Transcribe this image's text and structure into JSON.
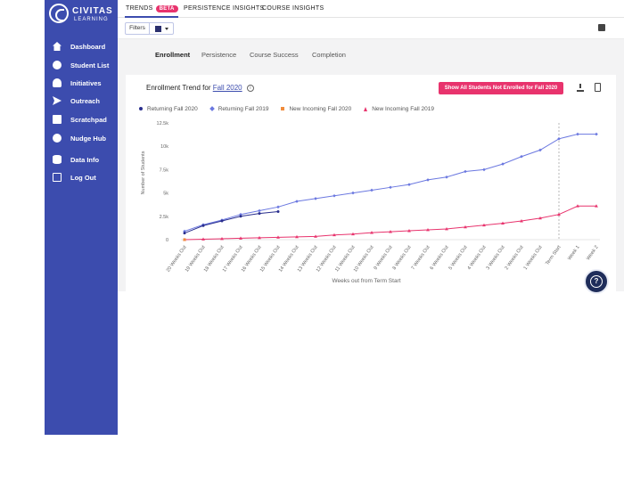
{
  "brand": {
    "line1": "CIVITAS",
    "line2": "LEARNING"
  },
  "sidebar": {
    "items": [
      {
        "label": "Dashboard",
        "icon": "home-icon"
      },
      {
        "label": "Student List",
        "icon": "face-icon"
      },
      {
        "label": "Initiatives",
        "icon": "lightbulb-icon"
      },
      {
        "label": "Outreach",
        "icon": "send-icon"
      },
      {
        "label": "Scratchpad",
        "icon": "clipboard-icon"
      },
      {
        "label": "Nudge Hub",
        "icon": "group-icon"
      },
      {
        "label": "Data Info",
        "icon": "database-icon"
      },
      {
        "label": "Log Out",
        "icon": "logout-icon"
      }
    ],
    "bg_color": "#3c4cae"
  },
  "topbar": {
    "tabs": [
      {
        "label": "TRENDS",
        "badge": "BETA",
        "active": true
      },
      {
        "label": "PERSISTENCE INSIGHTS"
      },
      {
        "label": "COURSE INSIGHTS"
      }
    ]
  },
  "toolbar": {
    "filters_label": "Filters"
  },
  "subtabs": [
    {
      "label": "Enrollment",
      "active": true
    },
    {
      "label": "Persistence"
    },
    {
      "label": "Course Success"
    },
    {
      "label": "Completion"
    }
  ],
  "card": {
    "title_prefix": "Enrollment Trend for",
    "term_link": "Fall 2020",
    "info_icon": "i",
    "action_button": "Show All Students Not Enrolled for Fall 2020"
  },
  "help": {
    "label": "?"
  },
  "accent_color": "#e8336d",
  "chart_data": {
    "type": "line",
    "xlabel": "Weeks out from Term Start",
    "ylabel": "Number of Students",
    "ylim": [
      0,
      12500
    ],
    "yticks": [
      0,
      2500,
      5000,
      7500,
      10000,
      12500
    ],
    "ytick_labels": [
      "0",
      "2.5k",
      "5k",
      "7.5k",
      "10k",
      "12.5k"
    ],
    "categories": [
      "20 Weeks Out",
      "19 Weeks Out",
      "18 Weeks Out",
      "17 Weeks Out",
      "16 Weeks Out",
      "15 Weeks Out",
      "14 Weeks Out",
      "13 Weeks Out",
      "12 Weeks Out",
      "11 Weeks Out",
      "10 Weeks Out",
      "9 Weeks Out",
      "8 Weeks Out",
      "7 Weeks Out",
      "6 Weeks Out",
      "5 Weeks Out",
      "4 Weeks Out",
      "3 Weeks Out",
      "2 Weeks Out",
      "1 Weeks Out",
      "Term Start",
      "Week 1",
      "Week 2"
    ],
    "term_start_marker": "Term Start",
    "legend_position": "top-left",
    "grid": false,
    "series": [
      {
        "name": "Returning Fall 2020",
        "color": "#2a2f8e",
        "marker": "circle",
        "values": [
          700,
          1500,
          2000,
          2500,
          2800,
          3000,
          null,
          null,
          null,
          null,
          null,
          null,
          null,
          null,
          null,
          null,
          null,
          null,
          null,
          null,
          null,
          null,
          null
        ]
      },
      {
        "name": "Returning Fall 2019",
        "color": "#6b78e0",
        "marker": "diamond",
        "values": [
          900,
          1600,
          2100,
          2700,
          3100,
          3500,
          4100,
          4400,
          4700,
          5000,
          5300,
          5600,
          5900,
          6400,
          6700,
          7300,
          7500,
          8100,
          8900,
          9600,
          10800,
          11300,
          11300
        ]
      },
      {
        "name": "New Incoming Fall 2020",
        "color": "#f08c3c",
        "marker": "square",
        "values": [
          0,
          null,
          null,
          null,
          null,
          null,
          null,
          null,
          null,
          null,
          null,
          null,
          null,
          null,
          null,
          null,
          null,
          null,
          null,
          null,
          null,
          null,
          null
        ]
      },
      {
        "name": "New Incoming Fall 2019",
        "color": "#e8336d",
        "marker": "triangle",
        "values": [
          0,
          50,
          100,
          150,
          200,
          250,
          300,
          350,
          500,
          600,
          750,
          850,
          950,
          1050,
          1150,
          1350,
          1550,
          1750,
          2000,
          2300,
          2700,
          3600,
          3600
        ]
      }
    ]
  }
}
